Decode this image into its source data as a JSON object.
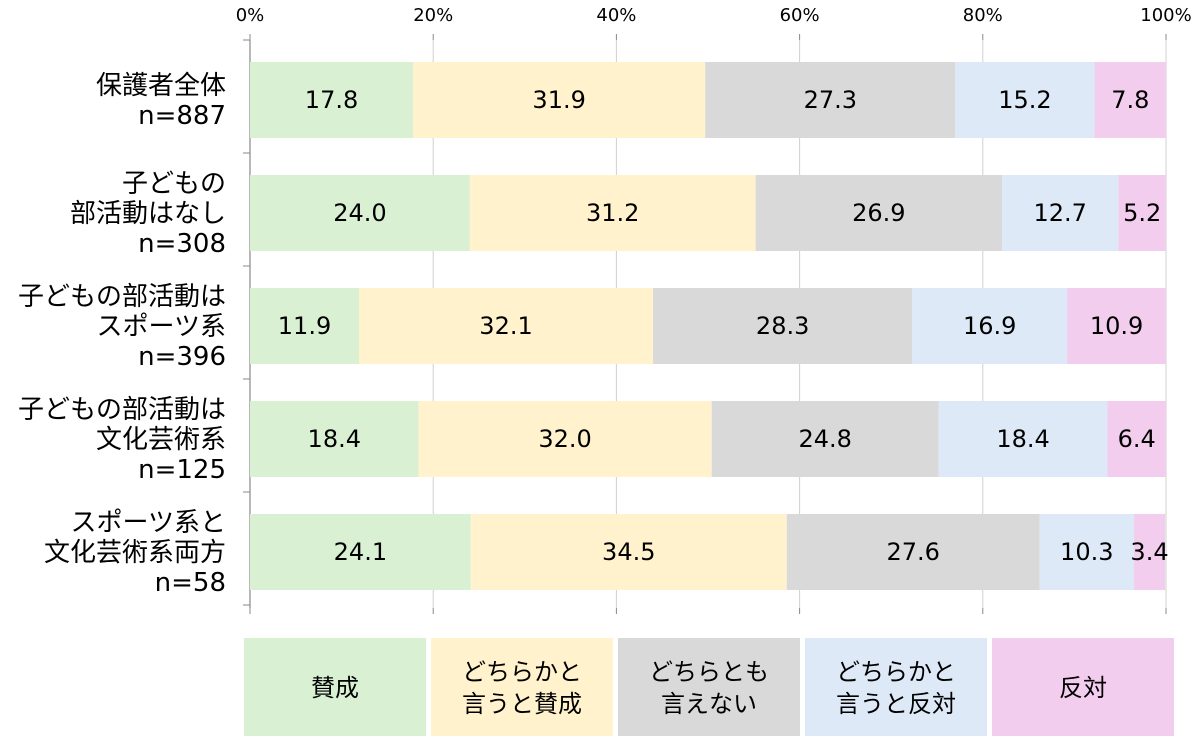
{
  "chart_data": {
    "type": "bar",
    "orientation": "horizontal",
    "stacked": true,
    "percent_stacked": true,
    "categories": [
      [
        "保護者全体",
        "n=887"
      ],
      [
        "子どもの",
        "部活動はなし",
        "n=308"
      ],
      [
        "子どもの部活動は",
        "スポーツ系",
        "n=396"
      ],
      [
        "子どもの部活動は",
        "文化芸術系",
        "n=125"
      ],
      [
        "スポーツ系と",
        "文化芸術系両方",
        "n=58"
      ]
    ],
    "series": [
      {
        "name": "賛成",
        "legend_lines": [
          "賛成"
        ],
        "color": "#d9f0d3",
        "values": [
          17.8,
          24.0,
          11.9,
          18.4,
          24.1
        ],
        "labels": [
          "17.8",
          "24.0",
          "11.9",
          "18.4",
          "24.1"
        ]
      },
      {
        "name": "どちらかと言うと賛成",
        "legend_lines": [
          "どちらかと",
          "言うと賛成"
        ],
        "color": "#fff2cc",
        "values": [
          31.9,
          31.2,
          32.1,
          32.0,
          34.5
        ],
        "labels": [
          "31.9",
          "31.2",
          "32.1",
          "32.0",
          "34.5"
        ]
      },
      {
        "name": "どちらとも言えない",
        "legend_lines": [
          "どちらとも",
          "言えない"
        ],
        "color": "#d9d9d9",
        "values": [
          27.3,
          26.9,
          28.3,
          24.8,
          27.6
        ],
        "labels": [
          "27.3",
          "26.9",
          "28.3",
          "24.8",
          "27.6"
        ]
      },
      {
        "name": "どちらかと言うと反対",
        "legend_lines": [
          "どちらかと",
          "言うと反対"
        ],
        "color": "#dde9f6",
        "values": [
          15.2,
          12.7,
          16.9,
          18.4,
          10.3
        ],
        "labels": [
          "15.2",
          "12.7",
          "16.9",
          "18.4",
          "10.3"
        ]
      },
      {
        "name": "反対",
        "legend_lines": [
          "反対"
        ],
        "color": "#f2cdee",
        "values": [
          7.8,
          5.2,
          10.9,
          6.4,
          3.4
        ],
        "labels": [
          "7.8",
          "5.2",
          "10.9",
          "6.4",
          "3.4"
        ]
      }
    ],
    "x_ticks": [
      "0%",
      "20%",
      "40%",
      "60%",
      "80%",
      "100%"
    ],
    "xlim": [
      0,
      100
    ],
    "grid": true,
    "legend_position": "bottom"
  }
}
